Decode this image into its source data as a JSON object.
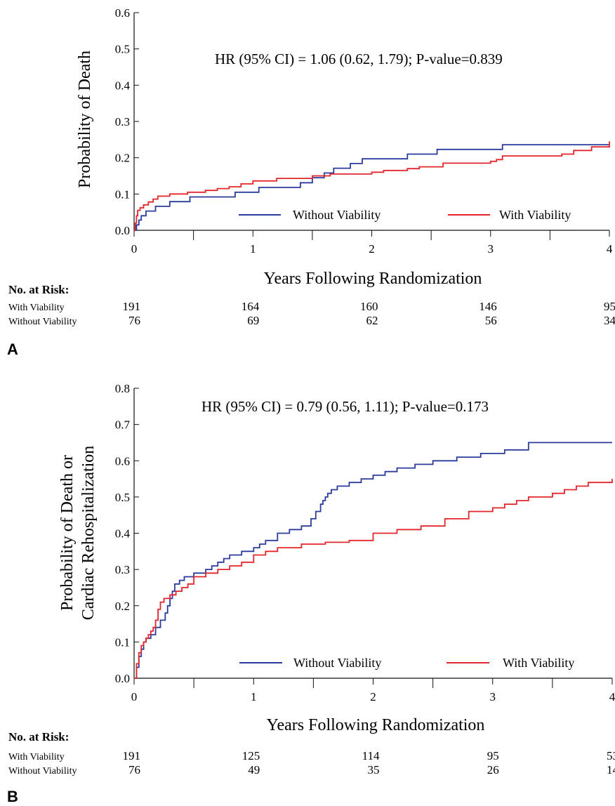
{
  "colors": {
    "without_viability": "#2b3b9c",
    "with_viability": "#e3262b",
    "axis": "#111111"
  },
  "risk_heading": "No. at Risk:",
  "panels": [
    {
      "letter": "A",
      "hr_text": "HR (95% CI) = 1.06 (0.62, 1.79); P-value=0.839",
      "ylabel_lines": [
        "Probability of Death"
      ],
      "xlabel": "Years Following Randomization",
      "legend": [
        {
          "series": "without",
          "label": "Without Viability"
        },
        {
          "series": "with",
          "label": "With Viability"
        }
      ],
      "risk": {
        "with_label": "With Viability",
        "with": [
          "191",
          "164",
          "160",
          "146",
          "95"
        ],
        "without_label": "Without Viability",
        "without": [
          "76",
          "69",
          "62",
          "56",
          "34"
        ]
      }
    },
    {
      "letter": "B",
      "hr_text": "HR (95% CI) = 0.79 (0.56, 1.11); P-value=0.173",
      "ylabel_lines": [
        "Probability of Death or",
        "Cardiac Rehospitalization"
      ],
      "xlabel": "Years Following Randomization",
      "legend": [
        {
          "series": "without",
          "label": "Without Viability"
        },
        {
          "series": "with",
          "label": "With Viability"
        }
      ],
      "risk": {
        "with_label": "With Viability",
        "with": [
          "191",
          "125",
          "114",
          "95",
          "53"
        ],
        "without_label": "Without Viability",
        "without": [
          "76",
          "49",
          "35",
          "26",
          "14"
        ]
      }
    }
  ],
  "chart_data": [
    {
      "type": "line",
      "step": true,
      "title": "HR (95% CI) = 1.06 (0.62, 1.79); P-value=0.839",
      "xlabel": "Years Following Randomization",
      "ylabel": "Probability of Death",
      "xlim": [
        0,
        4
      ],
      "ylim": [
        0,
        0.6
      ],
      "xticks": [
        "0",
        "1",
        "2",
        "3",
        "4"
      ],
      "yticks": [
        "0.0",
        "0.1",
        "0.2",
        "0.3",
        "0.4",
        "0.5",
        "0.6"
      ],
      "legend_position": "bottom",
      "series": [
        {
          "name": "Without Viability",
          "key": "without",
          "x": [
            0,
            0.02,
            0.04,
            0.06,
            0.1,
            0.18,
            0.3,
            0.47,
            0.6,
            0.85,
            1.05,
            1.2,
            1.4,
            1.5,
            1.6,
            1.68,
            1.82,
            1.92,
            2.3,
            2.55,
            3.05,
            3.1,
            3.3,
            4.0
          ],
          "y": [
            0,
            0.015,
            0.028,
            0.04,
            0.053,
            0.066,
            0.079,
            0.092,
            0.092,
            0.105,
            0.118,
            0.118,
            0.131,
            0.145,
            0.158,
            0.171,
            0.184,
            0.197,
            0.21,
            0.223,
            0.223,
            0.236,
            0.236,
            0.236
          ]
        },
        {
          "name": "With Viability",
          "key": "with",
          "x": [
            0,
            0.01,
            0.02,
            0.03,
            0.05,
            0.08,
            0.12,
            0.16,
            0.2,
            0.3,
            0.45,
            0.6,
            0.7,
            0.8,
            0.9,
            1.0,
            1.2,
            1.5,
            1.65,
            2.0,
            2.1,
            2.3,
            2.4,
            2.6,
            3.0,
            3.05,
            3.1,
            3.6,
            3.7,
            3.85,
            4.0
          ],
          "y": [
            0,
            0.02,
            0.04,
            0.055,
            0.062,
            0.07,
            0.078,
            0.086,
            0.094,
            0.1,
            0.105,
            0.11,
            0.115,
            0.12,
            0.128,
            0.136,
            0.143,
            0.15,
            0.155,
            0.16,
            0.165,
            0.17,
            0.175,
            0.185,
            0.19,
            0.195,
            0.205,
            0.21,
            0.22,
            0.23,
            0.245
          ]
        }
      ]
    },
    {
      "type": "line",
      "step": true,
      "title": "HR (95% CI) = 0.79 (0.56, 1.11); P-value=0.173",
      "xlabel": "Years Following Randomization",
      "ylabel": "Probability of Death or Cardiac Rehospitalization",
      "xlim": [
        0,
        4
      ],
      "ylim": [
        0,
        0.8
      ],
      "xticks": [
        "0",
        "1",
        "2",
        "3",
        "4"
      ],
      "yticks": [
        "0.0",
        "0.1",
        "0.2",
        "0.3",
        "0.4",
        "0.5",
        "0.6",
        "0.7",
        "0.8"
      ],
      "legend_position": "bottom",
      "series": [
        {
          "name": "Without Viability",
          "key": "without",
          "x": [
            0,
            0.02,
            0.04,
            0.06,
            0.08,
            0.1,
            0.14,
            0.18,
            0.22,
            0.26,
            0.28,
            0.3,
            0.32,
            0.34,
            0.38,
            0.42,
            0.5,
            0.6,
            0.65,
            0.7,
            0.75,
            0.8,
            0.9,
            1.0,
            1.05,
            1.1,
            1.2,
            1.3,
            1.4,
            1.48,
            1.52,
            1.56,
            1.58,
            1.6,
            1.62,
            1.65,
            1.7,
            1.8,
            1.9,
            2.0,
            2.1,
            2.2,
            2.35,
            2.5,
            2.7,
            2.9,
            3.1,
            3.3,
            4.0
          ],
          "y": [
            0,
            0.03,
            0.06,
            0.08,
            0.1,
            0.11,
            0.12,
            0.14,
            0.16,
            0.18,
            0.2,
            0.22,
            0.24,
            0.26,
            0.27,
            0.28,
            0.29,
            0.3,
            0.31,
            0.32,
            0.33,
            0.34,
            0.35,
            0.36,
            0.37,
            0.38,
            0.4,
            0.41,
            0.42,
            0.44,
            0.46,
            0.48,
            0.49,
            0.5,
            0.51,
            0.52,
            0.53,
            0.54,
            0.55,
            0.56,
            0.57,
            0.58,
            0.59,
            0.6,
            0.61,
            0.62,
            0.63,
            0.65,
            0.65
          ]
        },
        {
          "name": "With Viability",
          "key": "with",
          "x": [
            0,
            0.02,
            0.04,
            0.06,
            0.08,
            0.1,
            0.12,
            0.14,
            0.16,
            0.18,
            0.2,
            0.22,
            0.25,
            0.3,
            0.35,
            0.4,
            0.45,
            0.5,
            0.6,
            0.7,
            0.8,
            0.9,
            1.0,
            1.1,
            1.2,
            1.4,
            1.6,
            1.8,
            2.0,
            2.2,
            2.4,
            2.6,
            2.8,
            3.0,
            3.1,
            3.2,
            3.3,
            3.5,
            3.6,
            3.7,
            3.8,
            4.0
          ],
          "y": [
            0,
            0.04,
            0.07,
            0.09,
            0.1,
            0.11,
            0.12,
            0.13,
            0.14,
            0.16,
            0.19,
            0.21,
            0.22,
            0.23,
            0.24,
            0.25,
            0.26,
            0.28,
            0.29,
            0.3,
            0.31,
            0.32,
            0.34,
            0.35,
            0.36,
            0.37,
            0.375,
            0.38,
            0.4,
            0.41,
            0.42,
            0.44,
            0.46,
            0.47,
            0.48,
            0.49,
            0.5,
            0.51,
            0.52,
            0.53,
            0.54,
            0.55
          ]
        }
      ]
    }
  ]
}
